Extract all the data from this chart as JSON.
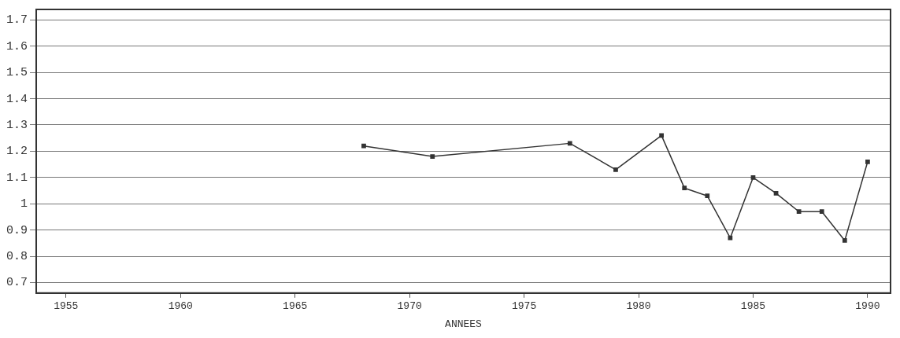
{
  "chart_data": {
    "type": "line",
    "xlabel": "ANNEES",
    "x": [
      1968,
      1971,
      1977,
      1979,
      1981,
      1982,
      1983,
      1984,
      1985,
      1986,
      1987,
      1988,
      1989,
      1990
    ],
    "series": [
      {
        "color": "#333333",
        "values": [
          1.22,
          1.18,
          1.23,
          1.13,
          1.26,
          1.06,
          1.03,
          0.87,
          1.1,
          1.04,
          0.97,
          0.97,
          0.86,
          1.16
        ]
      }
    ],
    "xlim": [
      1953.7,
      1991
    ],
    "xticks": [
      1955,
      1960,
      1965,
      1970,
      1975,
      1980,
      1985,
      1990
    ],
    "ylim": [
      0.66,
      1.74
    ],
    "yticks": [
      0.7,
      0.8,
      0.9,
      1,
      1.1,
      1.2,
      1.3,
      1.4,
      1.5,
      1.6,
      1.7
    ],
    "grid": "y",
    "marker": "square",
    "line_style": "solid",
    "legend": false
  }
}
